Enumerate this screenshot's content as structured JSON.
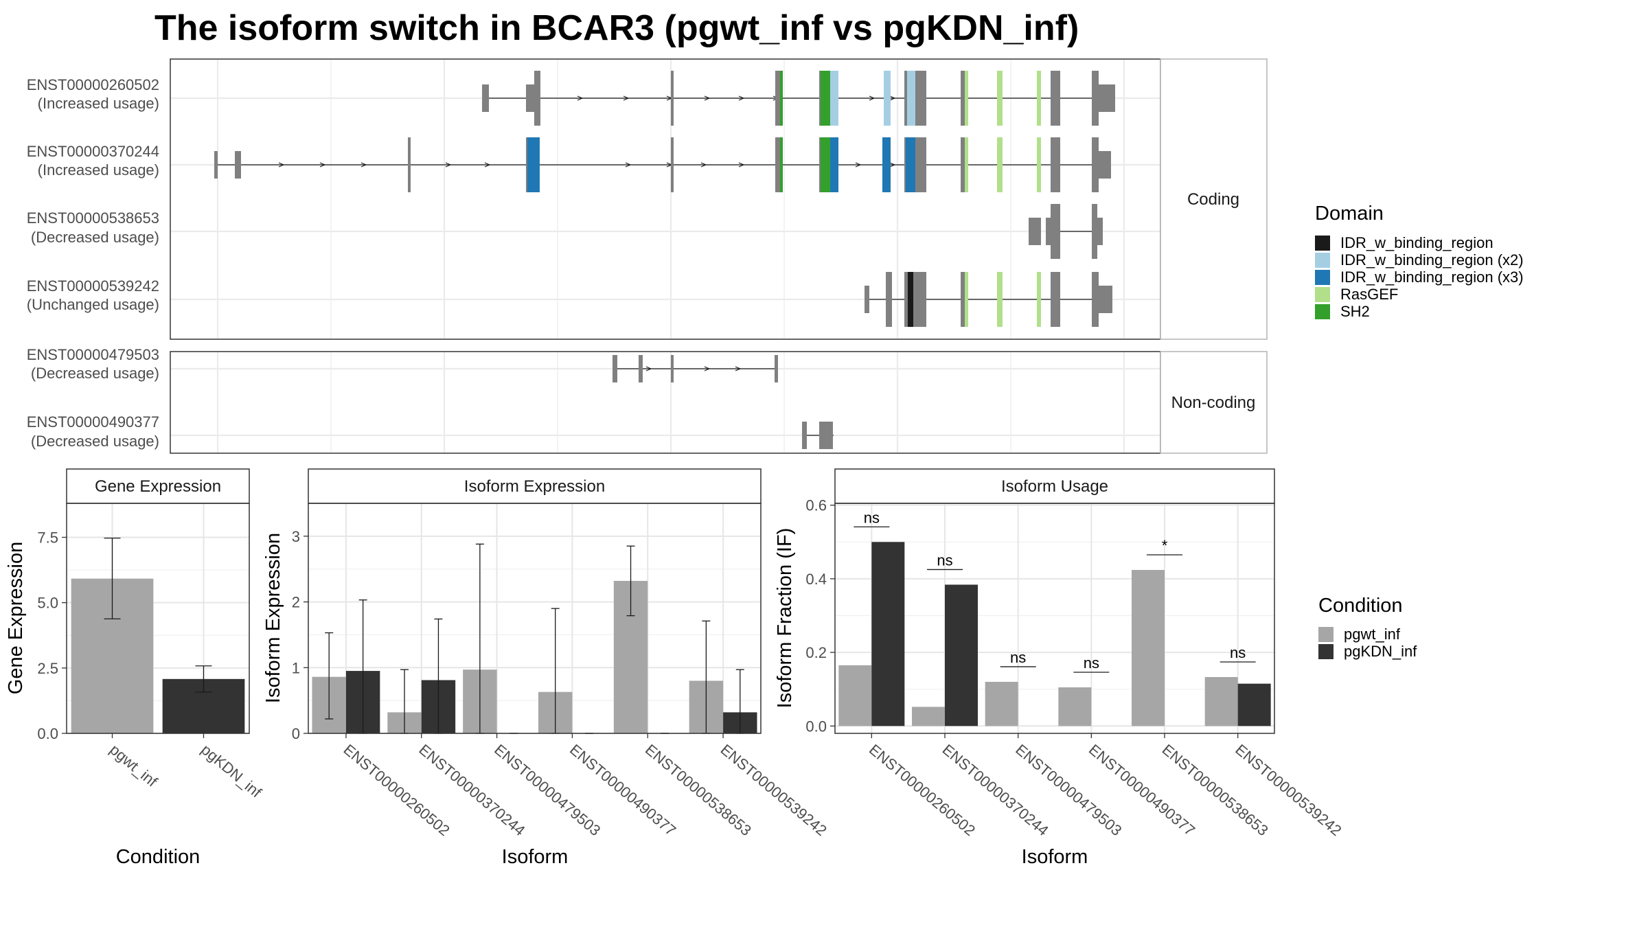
{
  "title": "The isoform switch in BCAR3 (pgwt_inf vs pgKDN_inf)",
  "colors": {
    "intron": "#1a1a1a",
    "exon": "#808080",
    "IDR_w_binding_region": "#1a1a1a",
    "IDR_w_binding_region (x2)": "#a6cee3",
    "IDR_w_binding_region (x3)": "#1f78b4",
    "RasGEF": "#b2df8a",
    "SH2": "#33a02c",
    "pgwt_inf": "#a6a6a6",
    "pgKDN_inf": "#333333"
  },
  "structure": {
    "coding_strip": "Coding",
    "noncoding_strip": "Non-coding",
    "coding": [
      {
        "id": "ENST00000260502",
        "usage": "(Increased usage)"
      },
      {
        "id": "ENST00000370244",
        "usage": "(Increased usage)"
      },
      {
        "id": "ENST00000538653",
        "usage": "(Decreased usage)"
      },
      {
        "id": "ENST00000539242",
        "usage": "(Unchanged usage)"
      }
    ],
    "noncoding": [
      {
        "id": "ENST00000479503",
        "usage": "(Decreased usage)"
      },
      {
        "id": "ENST00000490377",
        "usage": "(Decreased usage)"
      }
    ]
  },
  "legend_domain": {
    "title": "Domain",
    "items": [
      "IDR_w_binding_region",
      "IDR_w_binding_region (x2)",
      "IDR_w_binding_region (x3)",
      "RasGEF",
      "SH2"
    ]
  },
  "legend_condition": {
    "title": "Condition",
    "items": [
      "pgwt_inf",
      "pgKDN_inf"
    ]
  },
  "chart_data": [
    {
      "type": "bar",
      "title": "Gene Expression",
      "xlabel": "Condition",
      "ylabel": "Gene Expression",
      "categories": [
        "pgwt_inf",
        "pgKDN_inf"
      ],
      "values": [
        5.92,
        2.08
      ],
      "error_low": [
        4.38,
        1.58
      ],
      "error_high": [
        7.47,
        2.58
      ],
      "ylim": [
        0,
        8.8
      ],
      "yticks": [
        "0.0",
        "2.5",
        "5.0",
        "7.5"
      ],
      "grid": true
    },
    {
      "type": "bar",
      "title": "Isoform Expression",
      "xlabel": "Isoform",
      "ylabel": "Isoform Expression",
      "categories": [
        "ENST00000260502",
        "ENST00000370244",
        "ENST00000479503",
        "ENST00000490377",
        "ENST00000538653",
        "ENST00000539242"
      ],
      "series": [
        {
          "name": "pgwt_inf",
          "values": [
            0.86,
            0.32,
            0.97,
            0.63,
            2.32,
            0.8
          ],
          "error_low": [
            0.22,
            0.0,
            0.0,
            0.0,
            1.79,
            0.0
          ],
          "error_high": [
            1.53,
            0.97,
            2.88,
            1.9,
            2.85,
            1.71
          ]
        },
        {
          "name": "pgKDN_inf",
          "values": [
            0.95,
            0.81,
            0.0,
            0.0,
            0.0,
            0.32
          ],
          "error_low": [
            0.0,
            0.0,
            0.0,
            0.0,
            0.0,
            0.0
          ],
          "error_high": [
            2.03,
            1.74,
            0.0,
            0.0,
            0.0,
            0.97
          ]
        }
      ],
      "ylim": [
        0,
        3.5
      ],
      "yticks": [
        "0",
        "1",
        "2",
        "3"
      ],
      "grid": true
    },
    {
      "type": "bar",
      "title": "Isoform Usage",
      "xlabel": "Isoform",
      "ylabel": "Isoform Fraction (IF)",
      "categories": [
        "ENST00000260502",
        "ENST00000370244",
        "ENST00000479503",
        "ENST00000490377",
        "ENST00000538653",
        "ENST00000539242"
      ],
      "series": [
        {
          "name": "pgwt_inf",
          "values": [
            0.165,
            0.052,
            0.12,
            0.105,
            0.424,
            0.133
          ]
        },
        {
          "name": "pgKDN_inf",
          "values": [
            0.5,
            0.384,
            0.0,
            0.0,
            0.0,
            0.115
          ]
        }
      ],
      "significance": [
        "ns",
        "ns",
        "ns",
        "ns",
        "*",
        "ns"
      ],
      "ylim": [
        -0.02,
        0.605
      ],
      "yticks": [
        "0.0",
        "0.2",
        "0.4",
        "0.6"
      ],
      "grid": true
    }
  ]
}
